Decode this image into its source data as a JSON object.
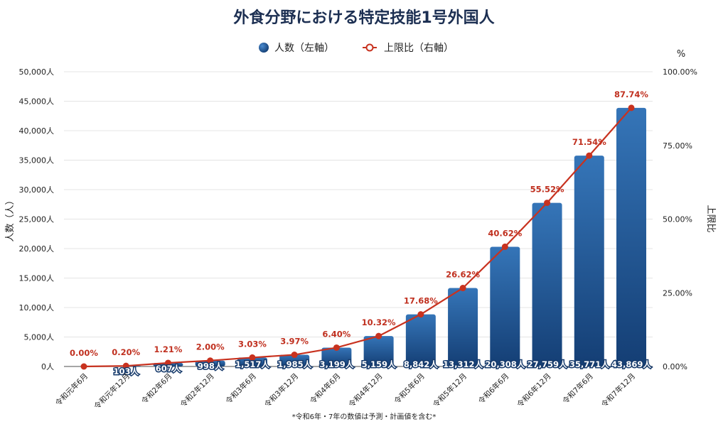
{
  "chart_data": {
    "type": "bar+line",
    "title": "外食分野における特定技能1号外国人",
    "categories": [
      "令和元年6月",
      "令和元年12月",
      "令和2年6月",
      "令和2年12月",
      "令和3年6月",
      "令和3年12月",
      "令和4年6月",
      "令和4年12月",
      "令和5年6月",
      "令和5年12月",
      "令和6年6月",
      "令和6年12月",
      "令和7年6月",
      "令和7年12月"
    ],
    "series": [
      {
        "name": "人数（左軸）",
        "type": "bar",
        "axis": "left",
        "values": [
          0,
          103,
          607,
          998,
          1517,
          1985,
          3199,
          5159,
          8842,
          13312,
          20308,
          27759,
          35771,
          43869
        ],
        "labels": [
          "",
          "103人",
          "607人",
          "998人",
          "1,517人",
          "1,985人",
          "3,199人",
          "5,159人",
          "8,842人",
          "13,312人",
          "20,308人",
          "27,759人",
          "35,771人",
          "43,869人"
        ]
      },
      {
        "name": "上限比（右軸）",
        "type": "line",
        "axis": "right",
        "values": [
          0.0,
          0.2,
          1.21,
          2.0,
          3.03,
          3.97,
          6.4,
          10.32,
          17.68,
          26.62,
          40.62,
          55.52,
          71.54,
          87.74
        ],
        "labels": [
          "0.00%",
          "0.20%",
          "1.21%",
          "2.00%",
          "3.03%",
          "3.97%",
          "6.40%",
          "10.32%",
          "17.68%",
          "26.62%",
          "40.62%",
          "55.52%",
          "71.54%",
          "87.74%"
        ]
      }
    ],
    "ylabel": "人数（人）",
    "ylim": [
      0,
      50000
    ],
    "yticks": [
      "0人",
      "5,000人",
      "10,000人",
      "15,000人",
      "20,000人",
      "25,000人",
      "30,000人",
      "35,000人",
      "40,000人",
      "45,000人",
      "50,000人"
    ],
    "y2label": "上限比",
    "y2unit": "%",
    "y2lim": [
      0,
      100
    ],
    "y2ticks": [
      "0.00%",
      "25.00%",
      "50.00%",
      "75.00%",
      "100.00%"
    ],
    "legend_position": "top-center",
    "note": "*令和6年・7年の数値は予測・計画値を含む*",
    "colors": {
      "bar": "#1f4f8a",
      "line": "#c8321f"
    }
  }
}
